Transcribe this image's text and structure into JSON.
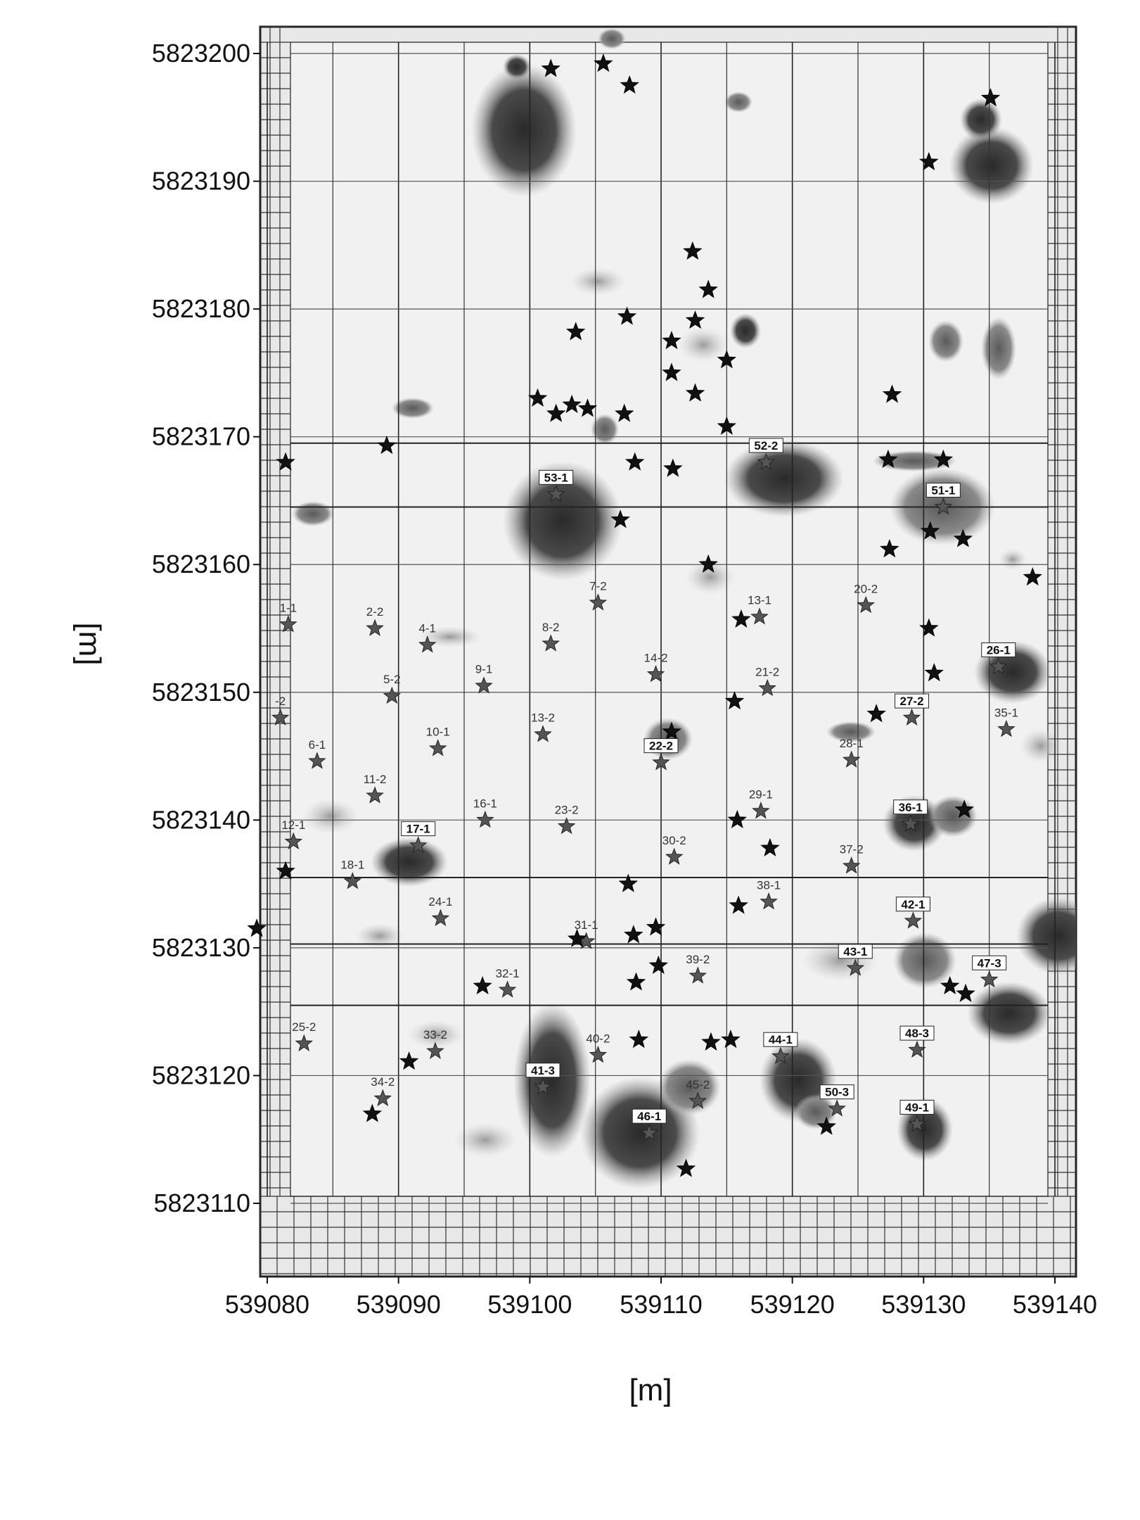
{
  "chart_data": {
    "type": "scatter",
    "title": "",
    "xlabel": "[m]",
    "ylabel": "[m]",
    "xlim": [
      539080,
      539142
    ],
    "ylim": [
      5823105,
      5823202
    ],
    "grid": true,
    "x_ticks": [
      539080,
      539090,
      539100,
      539110,
      539120,
      539130,
      539140
    ],
    "y_ticks": [
      5823110,
      5823120,
      5823130,
      5823140,
      5823150,
      5823160,
      5823170,
      5823180,
      5823190,
      5823200
    ],
    "x_tick_labels": [
      "539080",
      "539090",
      "539100",
      "539110",
      "539120",
      "539130",
      "539140"
    ],
    "y_tick_labels": [
      "5823110",
      "5823120",
      "5823130",
      "5823140",
      "5823150",
      "5823160",
      "5823170",
      "5823180",
      "5823190",
      "5823200"
    ],
    "colors": {
      "anomaly_dark": "#2a2a2a",
      "anomaly_mid": "#6e6e6e",
      "anomaly_light": "#b3b3b3",
      "background": "#ececec",
      "star_black": "#111111",
      "star_grey": "#555555"
    },
    "series": [
      {
        "points": [
          {
            "label": "1-1",
            "x": 539081.6,
            "y": 5823155.3
          },
          {
            "label": "2-2",
            "x": 539088.2,
            "y": 5823155.0
          },
          {
            "label": "4-1",
            "x": 539092.2,
            "y": 5823153.7
          },
          {
            "label": "5-2",
            "x": 539089.5,
            "y": 5823149.7
          },
          {
            "label": "-2",
            "x": 539081.0,
            "y": 5823148.0
          },
          {
            "label": "6-1",
            "x": 539083.8,
            "y": 5823144.6
          },
          {
            "label": "10-1",
            "x": 539093.0,
            "y": 5823145.6
          },
          {
            "label": "11-2",
            "x": 539088.2,
            "y": 5823141.9
          },
          {
            "label": "9-1",
            "x": 539096.5,
            "y": 5823150.5
          },
          {
            "label": "8-2",
            "x": 539101.6,
            "y": 5823153.8
          },
          {
            "label": "7-2",
            "x": 539105.2,
            "y": 5823157.0
          },
          {
            "label": "13-2",
            "x": 539101.0,
            "y": 5823146.7
          },
          {
            "label": "14-2",
            "x": 539109.6,
            "y": 5823151.4
          },
          {
            "label": "13-1",
            "x": 539117.5,
            "y": 5823155.9
          },
          {
            "label": "21-2",
            "x": 539118.1,
            "y": 5823150.3
          },
          {
            "label": "20-2",
            "x": 539125.6,
            "y": 5823156.8
          },
          {
            "label": "22-2",
            "x": 539110.0,
            "y": 5823144.5
          },
          {
            "label": "16-1",
            "x": 539096.6,
            "y": 5823140.0
          },
          {
            "label": "23-2",
            "x": 539102.8,
            "y": 5823139.5
          },
          {
            "label": "28-1",
            "x": 539124.5,
            "y": 5823144.7
          },
          {
            "label": "29-1",
            "x": 539117.6,
            "y": 5823140.7
          },
          {
            "label": "12-1",
            "x": 539082.0,
            "y": 5823138.3
          },
          {
            "label": "17-1",
            "x": 539091.5,
            "y": 5823138.0
          },
          {
            "label": "18-1",
            "x": 539086.5,
            "y": 5823135.2
          },
          {
            "label": "30-2",
            "x": 539111.0,
            "y": 5823137.1
          },
          {
            "label": "37-2",
            "x": 539124.5,
            "y": 5823136.4
          },
          {
            "label": "24-1",
            "x": 539093.2,
            "y": 5823132.3
          },
          {
            "label": "38-1",
            "x": 539118.2,
            "y": 5823133.6
          },
          {
            "label": "31-1",
            "x": 539104.3,
            "y": 5823130.5
          },
          {
            "label": "39-2",
            "x": 539112.8,
            "y": 5823127.8
          },
          {
            "label": "32-1",
            "x": 539098.3,
            "y": 5823126.7
          },
          {
            "label": "42-1",
            "x": 539129.2,
            "y": 5823132.1
          },
          {
            "label": "43-1",
            "x": 539124.8,
            "y": 5823128.4
          },
          {
            "label": "47-3",
            "x": 539135.0,
            "y": 5823127.5
          },
          {
            "label": "35-1",
            "x": 539136.3,
            "y": 5823147.1
          },
          {
            "label": "26-1",
            "x": 539135.7,
            "y": 5823152.0
          },
          {
            "label": "27-2",
            "x": 539129.1,
            "y": 5823148.0
          },
          {
            "label": "36-1",
            "x": 539129.0,
            "y": 5823139.7
          },
          {
            "label": "25-2",
            "x": 539082.8,
            "y": 5823122.5
          },
          {
            "label": "33-2",
            "x": 539092.8,
            "y": 5823121.9
          },
          {
            "label": "34-2",
            "x": 539088.8,
            "y": 5823118.2
          },
          {
            "label": "40-2",
            "x": 539105.2,
            "y": 5823121.6
          },
          {
            "label": "41-3",
            "x": 539101.0,
            "y": 5823119.1
          },
          {
            "label": "46-1",
            "x": 539109.1,
            "y": 5823115.5
          },
          {
            "label": "45-2",
            "x": 539112.8,
            "y": 5823118.0
          },
          {
            "label": "44-1",
            "x": 539119.1,
            "y": 5823121.5
          },
          {
            "label": "50-3",
            "x": 539123.4,
            "y": 5823117.4
          },
          {
            "label": "48-3",
            "x": 539129.5,
            "y": 5823122.0
          },
          {
            "label": "49-1",
            "x": 539129.5,
            "y": 5823116.2
          },
          {
            "label": "52-2",
            "x": 539118.0,
            "y": 5823168.0
          },
          {
            "label": "53-1",
            "x": 539102.0,
            "y": 5823165.5
          },
          {
            "label": "51-1",
            "x": 539131.5,
            "y": 5823164.5
          }
        ]
      }
    ]
  }
}
